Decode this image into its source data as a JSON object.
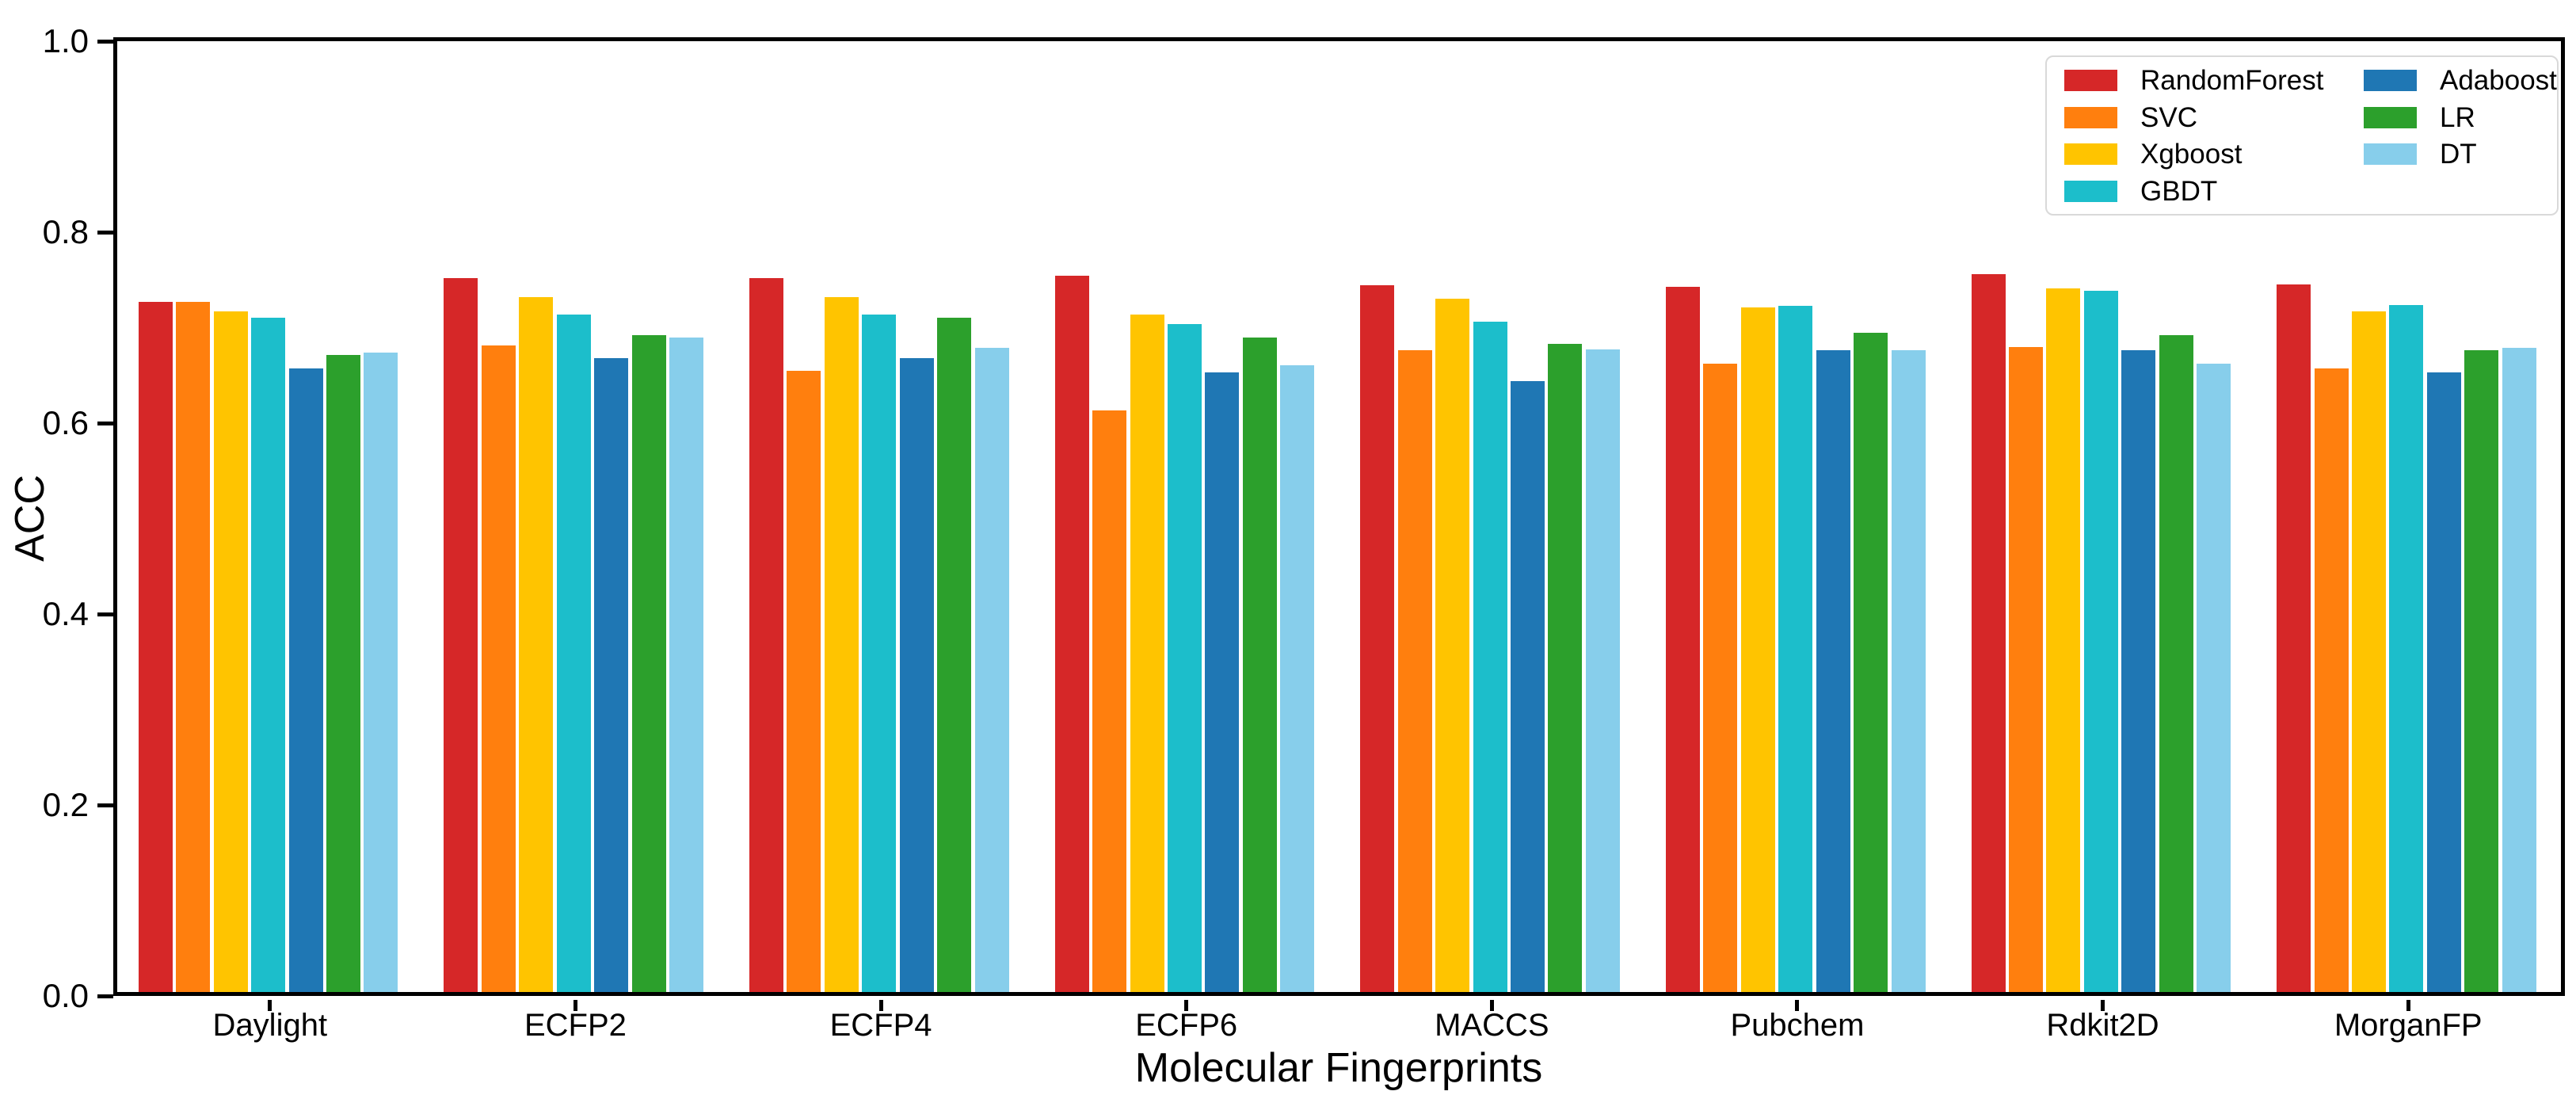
{
  "figure": {
    "background": "#ffffff",
    "axis_color": "#000000"
  },
  "chart_data": {
    "type": "bar",
    "title": "",
    "xlabel": "Molecular Fingerprints",
    "ylabel": "ACC",
    "ylim": [
      0.0,
      1.0
    ],
    "y_ticks": [
      {
        "value": 0.0,
        "label": "0.0"
      },
      {
        "value": 0.2,
        "label": "0.2"
      },
      {
        "value": 0.4,
        "label": "0.4"
      },
      {
        "value": 0.6,
        "label": "0.6"
      },
      {
        "value": 0.8,
        "label": "0.8"
      },
      {
        "value": 1.0,
        "label": "1.0"
      }
    ],
    "grid": false,
    "legend_position": "upper-right-inside",
    "legend_columns": 2,
    "categories": [
      "Daylight",
      "ECFP2",
      "ECFP4",
      "ECFP6",
      "MACCS",
      "Pubchem",
      "Rdkit2D",
      "MorganFP"
    ],
    "series": [
      {
        "name": "RandomForest",
        "color": "#d62728",
        "values": [
          0.727,
          0.752,
          0.752,
          0.754,
          0.744,
          0.743,
          0.756,
          0.745
        ]
      },
      {
        "name": "SVC",
        "color": "#ff7f0e",
        "values": [
          0.727,
          0.681,
          0.655,
          0.613,
          0.676,
          0.662,
          0.68,
          0.657
        ]
      },
      {
        "name": "Xgboost",
        "color": "#ffc400",
        "values": [
          0.717,
          0.732,
          0.732,
          0.714,
          0.73,
          0.721,
          0.741,
          0.717
        ]
      },
      {
        "name": "GBDT",
        "color": "#1cbecb",
        "values": [
          0.71,
          0.714,
          0.714,
          0.704,
          0.706,
          0.723,
          0.739,
          0.724
        ]
      },
      {
        "name": "Adaboost",
        "color": "#1f77b4",
        "values": [
          0.657,
          0.668,
          0.668,
          0.653,
          0.644,
          0.676,
          0.676,
          0.653
        ]
      },
      {
        "name": "LR",
        "color": "#2ca02c",
        "values": [
          0.671,
          0.692,
          0.71,
          0.69,
          0.683,
          0.695,
          0.692,
          0.676
        ]
      },
      {
        "name": "DT",
        "color": "#87ceeb",
        "values": [
          0.674,
          0.69,
          0.679,
          0.661,
          0.677,
          0.676,
          0.662,
          0.679
        ]
      }
    ]
  }
}
